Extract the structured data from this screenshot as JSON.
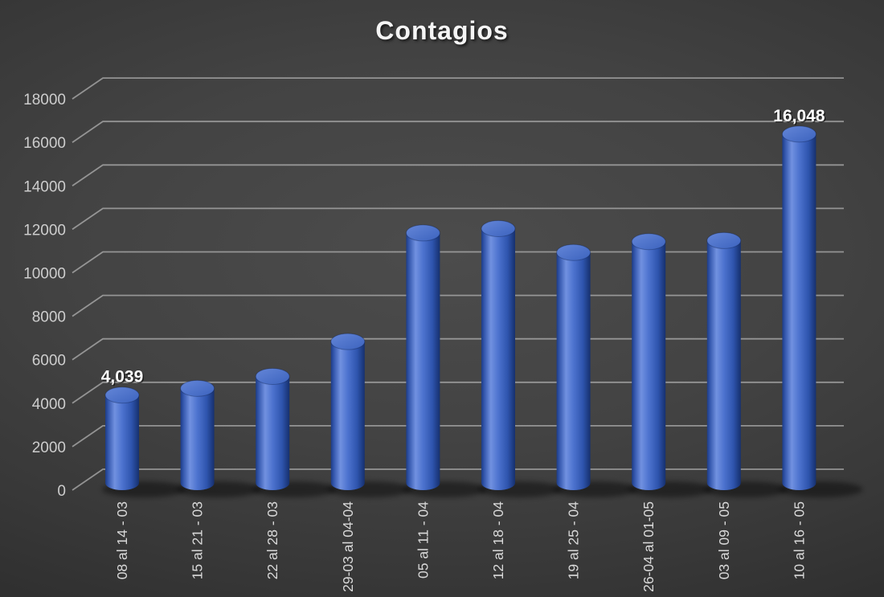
{
  "chart_data": {
    "type": "bar",
    "subtype": "3d-cylinder",
    "title": "Contagios",
    "xlabel": "",
    "ylabel": "",
    "categories": [
      "08 al 14 - 03",
      "15 al 21 - 03",
      "22 al 28 - 03",
      "29-03 al 04-04",
      "05 al 11 - 04",
      "12 al 18 - 04",
      "19 al 25 - 04",
      "26-04 al 01-05",
      "03 al 09 - 05",
      "10 al 16 - 05"
    ],
    "values": [
      4039,
      4350,
      4900,
      6500,
      11500,
      11700,
      10600,
      11100,
      11150,
      16048
    ],
    "data_labels": [
      {
        "category_index": 0,
        "text": "4,039"
      },
      {
        "category_index": 9,
        "text": "16,048"
      }
    ],
    "ylim": [
      0,
      18000
    ],
    "ytick_step": 2000,
    "yticks": [
      "0",
      "2000",
      "4000",
      "6000",
      "8000",
      "10000",
      "12000",
      "14000",
      "16000",
      "18000"
    ],
    "grid": true,
    "legend": false,
    "colors": {
      "background_center": "#4c4c4c",
      "background_edge": "#222222",
      "gridline": "#b0b0b0",
      "bar_left_edge": "#1d3c86",
      "bar_highlight": "#7191e0",
      "bar_mid": "#4d73cf",
      "bar_right_edge": "#16306e",
      "bar_top_light": "#6486d8",
      "bar_top_dark": "#3c63be",
      "tick_text": "#cdcdcd",
      "category_text": "#d9d9d9",
      "title_text": "#f5f5f5",
      "data_label_text": "#ffffff"
    }
  }
}
